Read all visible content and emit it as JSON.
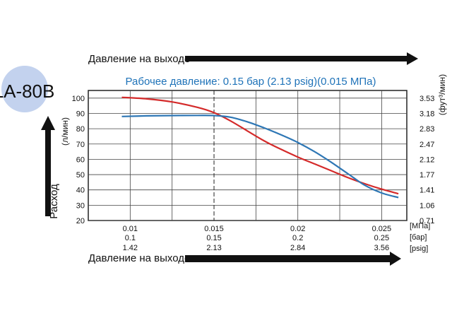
{
  "model_badge": {
    "text": "LA-80B",
    "color": "#c3d2ee"
  },
  "top_arrow_label": "Давление на выходе",
  "bottom_arrow_label": "Давление на выходе",
  "left_arrow_label": "Расход",
  "colors": {
    "title": "#1e72b8",
    "series_red": "#d42a2a",
    "series_blue": "#2e77b5",
    "arrow": "#111111"
  },
  "chart_data": {
    "type": "line",
    "title": "Рабочее давление: 0.15 бар (2.13 psig)(0.015 МПа)",
    "ylabel_left": "(л/мин)",
    "ylabel_right": "(фут³/мин)",
    "ylim": [
      20,
      105
    ],
    "yticks_left": [
      100,
      90,
      80,
      70,
      60,
      50,
      40,
      30,
      20
    ],
    "yticks_right": [
      {
        "label": "3.53",
        "value": 100
      },
      {
        "label": "3.18",
        "value": 90
      },
      {
        "label": "2.83",
        "value": 80
      },
      {
        "label": "2.47",
        "value": 70
      },
      {
        "label": "2.12",
        "value": 60
      },
      {
        "label": "1.77",
        "value": 50
      },
      {
        "label": "1.41",
        "value": 40
      },
      {
        "label": "1.06",
        "value": 30
      },
      {
        "label": "0.71",
        "value": 20
      }
    ],
    "xlim": [
      0.0075,
      0.0265
    ],
    "xticks": [
      {
        "value": 0.01,
        "mpa": "0.01",
        "bar": "0.1",
        "psig": "1.42"
      },
      {
        "value": 0.015,
        "mpa": "0.015",
        "bar": "0.15",
        "psig": "2.13"
      },
      {
        "value": 0.02,
        "mpa": "0.02",
        "bar": "0.2",
        "psig": "2.84"
      },
      {
        "value": 0.025,
        "mpa": "0.025",
        "bar": "0.25",
        "psig": "3.56"
      }
    ],
    "x_units": [
      "[МПа]",
      "[бар]",
      "[psig]"
    ],
    "operating_pressure_line": 0.015,
    "series": [
      {
        "color": "red",
        "x": [
          0.0095,
          0.011,
          0.0125,
          0.014,
          0.015,
          0.016,
          0.017,
          0.018,
          0.019,
          0.02,
          0.021,
          0.022,
          0.023,
          0.024,
          0.025,
          0.026
        ],
        "y": [
          100.5,
          99.5,
          97.5,
          94,
          90.5,
          85,
          78.5,
          72,
          66.5,
          61.5,
          57,
          52.5,
          48,
          44,
          40.5,
          37.5
        ]
      },
      {
        "color": "blue",
        "x": [
          0.0095,
          0.011,
          0.0125,
          0.014,
          0.015,
          0.016,
          0.017,
          0.018,
          0.019,
          0.02,
          0.021,
          0.022,
          0.023,
          0.024,
          0.025,
          0.026
        ],
        "y": [
          88,
          88.4,
          88.6,
          88.7,
          88.6,
          87.5,
          84.5,
          80.5,
          76,
          71,
          65,
          58,
          50.5,
          43,
          38,
          35
        ]
      }
    ]
  }
}
